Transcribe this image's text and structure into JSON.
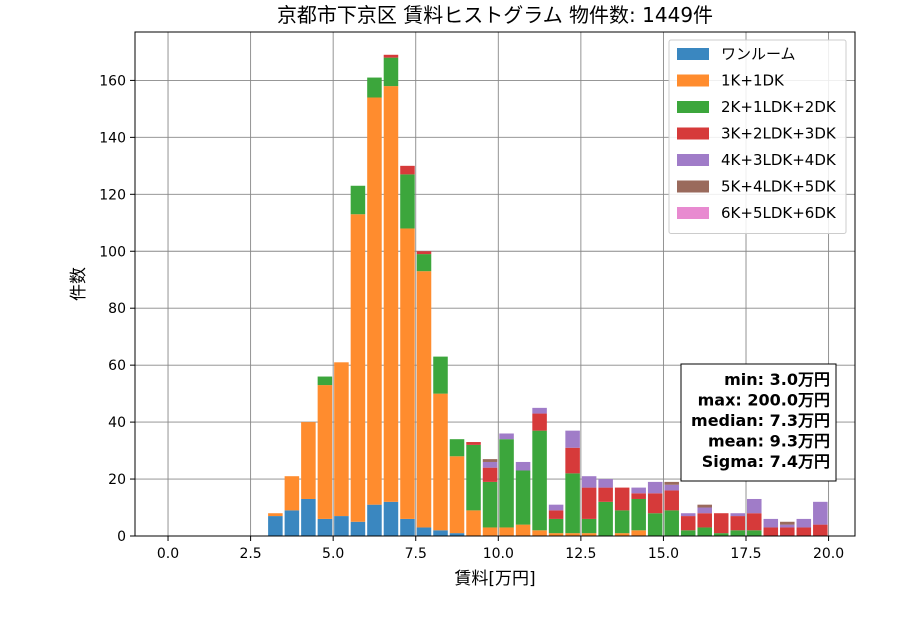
{
  "chart_data": {
    "type": "bar",
    "stacked": true,
    "title": "京都市下京区 賃料ヒストグラム  物件数: 1449件",
    "xlabel": "賃料[万円]",
    "ylabel": "件数",
    "xlim": [
      -1.0,
      20.8
    ],
    "ylim": [
      0,
      177
    ],
    "x_ticks": [
      0.0,
      2.5,
      5.0,
      7.5,
      10.0,
      12.5,
      15.0,
      17.5,
      20.0
    ],
    "x_tick_labels": [
      "0.0",
      "2.5",
      "5.0",
      "7.5",
      "10.0",
      "12.5",
      "15.0",
      "17.5",
      "20.0"
    ],
    "y_ticks": [
      0,
      20,
      40,
      60,
      80,
      100,
      120,
      140,
      160
    ],
    "y_tick_labels": [
      "0",
      "20",
      "40",
      "60",
      "80",
      "100",
      "120",
      "140",
      "160"
    ],
    "grid": true,
    "legend_position": "top-right",
    "bin_width": 0.5,
    "bin_left_edges": [
      3.0,
      3.5,
      4.0,
      4.5,
      5.0,
      5.5,
      6.0,
      6.5,
      7.0,
      7.5,
      8.0,
      8.5,
      9.0,
      9.5,
      10.0,
      10.5,
      11.0,
      11.5,
      12.0,
      12.5,
      13.0,
      13.5,
      14.0,
      14.5,
      15.0,
      15.5,
      16.0,
      16.5,
      17.0,
      17.5,
      18.0,
      18.5,
      19.0,
      19.5
    ],
    "series": [
      {
        "name": "ワンルーム",
        "color": "#3a87c0",
        "values": [
          7,
          9,
          13,
          6,
          7,
          5,
          11,
          12,
          6,
          3,
          2,
          1,
          0,
          0,
          0,
          0,
          0,
          0,
          0,
          0,
          0,
          0,
          0,
          0,
          0,
          0,
          0,
          0,
          0,
          0,
          0,
          0,
          0,
          0
        ]
      },
      {
        "name": "1K+1DK",
        "color": "#ff8c2e",
        "values": [
          1,
          12,
          27,
          47,
          54,
          108,
          143,
          146,
          102,
          90,
          48,
          27,
          9,
          3,
          3,
          4,
          2,
          1,
          1,
          1,
          0,
          1,
          2,
          0,
          0,
          0,
          0,
          0,
          0,
          0,
          0,
          0,
          0,
          0
        ]
      },
      {
        "name": "2K+1LDK+2DK",
        "color": "#3ca63c",
        "values": [
          0,
          0,
          0,
          3,
          0,
          10,
          7,
          10,
          19,
          6,
          13,
          6,
          23,
          16,
          31,
          19,
          35,
          5,
          21,
          5,
          12,
          8,
          11,
          8,
          9,
          2,
          3,
          1,
          2,
          2,
          0,
          0,
          0,
          0
        ]
      },
      {
        "name": "3K+2LDK+3DK",
        "color": "#d63a3a",
        "values": [
          0,
          0,
          0,
          0,
          0,
          0,
          0,
          1,
          3,
          1,
          0,
          0,
          1,
          5,
          0,
          0,
          6,
          3,
          9,
          11,
          5,
          8,
          2,
          7,
          7,
          5,
          5,
          7,
          5,
          6,
          3,
          3,
          3,
          4
        ]
      },
      {
        "name": "4K+3LDK+4DK",
        "color": "#a07cc8",
        "values": [
          0,
          0,
          0,
          0,
          0,
          0,
          0,
          0,
          0,
          0,
          0,
          0,
          0,
          2,
          2,
          3,
          2,
          2,
          6,
          4,
          3,
          0,
          2,
          4,
          2,
          1,
          2,
          0,
          1,
          5,
          3,
          1,
          3,
          8
        ]
      },
      {
        "name": "5K+4LDK+5DK",
        "color": "#9a6a5c",
        "values": [
          0,
          0,
          0,
          0,
          0,
          0,
          0,
          0,
          0,
          0,
          0,
          0,
          0,
          1,
          0,
          0,
          0,
          0,
          0,
          0,
          0,
          0,
          0,
          0,
          1,
          0,
          1,
          0,
          0,
          0,
          0,
          1,
          0,
          0
        ]
      },
      {
        "name": "6K+5LDK+6DK",
        "color": "#e88ad0",
        "values": [
          0,
          0,
          0,
          0,
          0,
          0,
          0,
          0,
          0,
          0,
          0,
          0,
          0,
          0,
          0,
          0,
          0,
          0,
          0,
          0,
          0,
          0,
          0,
          0,
          0,
          0,
          0,
          0,
          0,
          0,
          0,
          0,
          0,
          0
        ]
      }
    ],
    "stats_box": {
      "lines": [
        "min: 3.0万円",
        "max: 200.0万円",
        "median: 7.3万円",
        "mean: 9.3万円",
        "Sigma: 7.4万円"
      ]
    }
  }
}
